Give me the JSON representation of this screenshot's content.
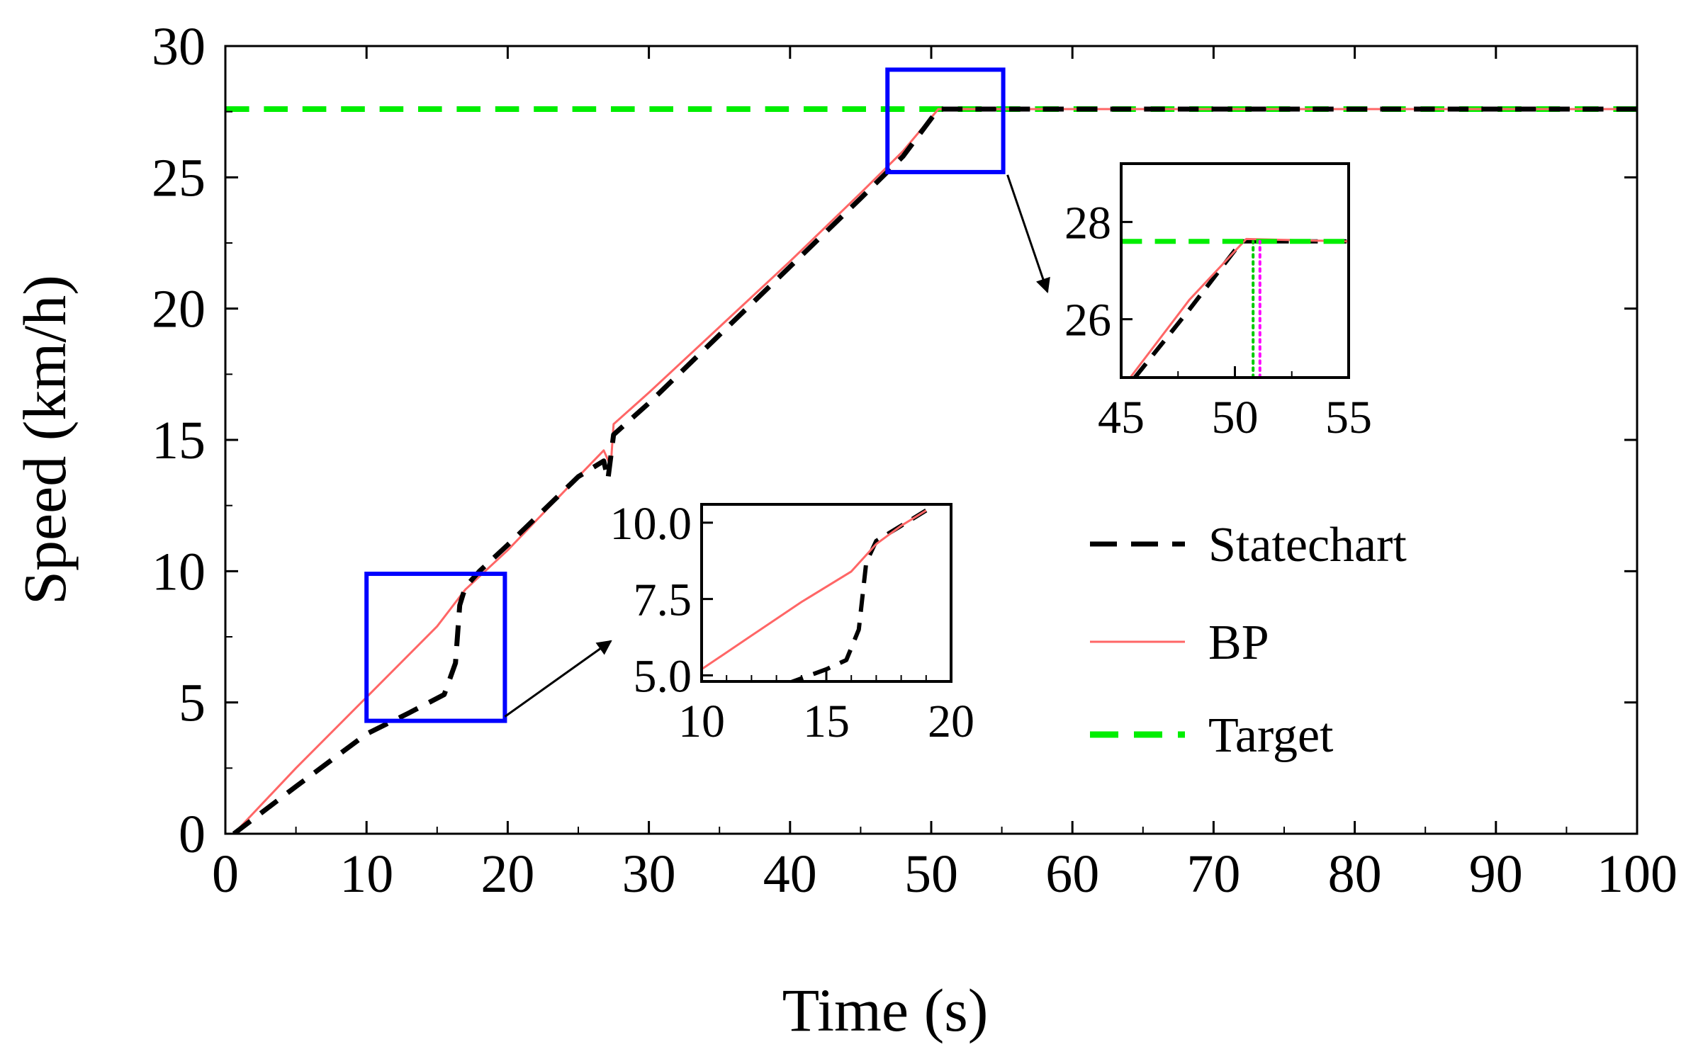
{
  "chart_data": [
    {
      "type": "line",
      "xlabel": "Time (s)",
      "ylabel": "Speed (km/h)",
      "xlim": [
        0,
        100
      ],
      "ylim": [
        0,
        30
      ],
      "x_ticks": [
        "0",
        "10",
        "20",
        "30",
        "40",
        "50",
        "60",
        "70",
        "80",
        "90",
        "100"
      ],
      "y_ticks": [
        "0",
        "5",
        "10",
        "15",
        "20",
        "25",
        "30"
      ],
      "grid": false,
      "legend_position": "center-right",
      "series": [
        {
          "name": "Statechart",
          "color": "#000000",
          "style": "dashed",
          "x": [
            0.6,
            5,
            10,
            13,
            15.5,
            16.3,
            16.6,
            17,
            18,
            20,
            25,
            26.8,
            27.1,
            27.5,
            30,
            35,
            40,
            45,
            48,
            50.5,
            60,
            70,
            80,
            90,
            100
          ],
          "y": [
            0,
            1.8,
            3.8,
            4.6,
            5.3,
            6.5,
            8.7,
            9.4,
            10.0,
            11.0,
            13.6,
            14.2,
            13.5,
            15.2,
            16.4,
            19.0,
            21.6,
            24.2,
            25.8,
            27.6,
            27.6,
            27.6,
            27.6,
            27.6,
            27.6
          ]
        },
        {
          "name": "BP",
          "color": "#ff6666",
          "style": "solid",
          "x": [
            0.6,
            5,
            10,
            15,
            17,
            20,
            25,
            26.8,
            27.3,
            27.5,
            30,
            35,
            40,
            45,
            48,
            50.5,
            60,
            70,
            80,
            90,
            100
          ],
          "y": [
            0,
            2.5,
            5.2,
            7.9,
            9.3,
            10.8,
            13.6,
            14.6,
            14.0,
            15.6,
            16.8,
            19.3,
            21.8,
            24.4,
            26.0,
            27.6,
            27.6,
            27.6,
            27.6,
            27.6,
            27.6
          ]
        },
        {
          "name": "Target",
          "color": "#00ee00",
          "style": "dashed",
          "x": [
            0,
            100
          ],
          "y": [
            27.6,
            27.6
          ]
        }
      ]
    },
    {
      "type": "line",
      "xlim": [
        10,
        20
      ],
      "ylim": [
        4.8,
        10.6
      ],
      "x_ticks": [
        "10",
        "15",
        "20"
      ],
      "y_ticks": [
        "5.0",
        "7.5",
        "10.0"
      ],
      "series": [
        {
          "name": "Statechart",
          "color": "#000000",
          "style": "dashed",
          "x": [
            10,
            13,
            15,
            15.8,
            16.3,
            16.6,
            17,
            18,
            19
          ],
          "y": [
            4.1,
            4.6,
            5.2,
            5.5,
            6.5,
            8.7,
            9.4,
            9.9,
            10.4
          ]
        },
        {
          "name": "BP",
          "color": "#ff6666",
          "style": "solid",
          "x": [
            10,
            12,
            14,
            16,
            17,
            18,
            19
          ],
          "y": [
            5.2,
            6.3,
            7.4,
            8.4,
            9.3,
            9.9,
            10.4
          ]
        }
      ]
    },
    {
      "type": "line",
      "xlim": [
        45,
        55
      ],
      "ylim": [
        24.8,
        29.2
      ],
      "x_ticks": [
        "45",
        "50",
        "55"
      ],
      "y_ticks": [
        "26",
        "28"
      ],
      "series": [
        {
          "name": "Statechart",
          "color": "#000000",
          "style": "dashed",
          "x": [
            45.6,
            48,
            50.3,
            55
          ],
          "y": [
            24.8,
            26.2,
            27.6,
            27.6
          ]
        },
        {
          "name": "BP",
          "color": "#ff6666",
          "style": "solid",
          "x": [
            45.4,
            48,
            50.5,
            55
          ],
          "y": [
            24.8,
            26.4,
            27.65,
            27.6
          ]
        },
        {
          "name": "Target",
          "color": "#00ee00",
          "style": "dashed",
          "x": [
            45,
            55
          ],
          "y": [
            27.6,
            27.6
          ]
        },
        {
          "name": "",
          "color": "#00cc00",
          "style": "dotted",
          "x": [
            50.8,
            50.8
          ],
          "y": [
            24.8,
            27.6
          ]
        },
        {
          "name": "",
          "color": "#ff00ff",
          "style": "dotted",
          "x": [
            51.1,
            51.1
          ],
          "y": [
            24.8,
            27.6
          ]
        }
      ]
    }
  ],
  "zoom_boxes": [
    {
      "x": [
        10,
        19.8
      ],
      "y": [
        4.3,
        9.9
      ],
      "color": "#0000ff"
    },
    {
      "x": [
        46.9,
        55.1
      ],
      "y": [
        25.2,
        29.1
      ],
      "color": "#0000ff"
    }
  ]
}
